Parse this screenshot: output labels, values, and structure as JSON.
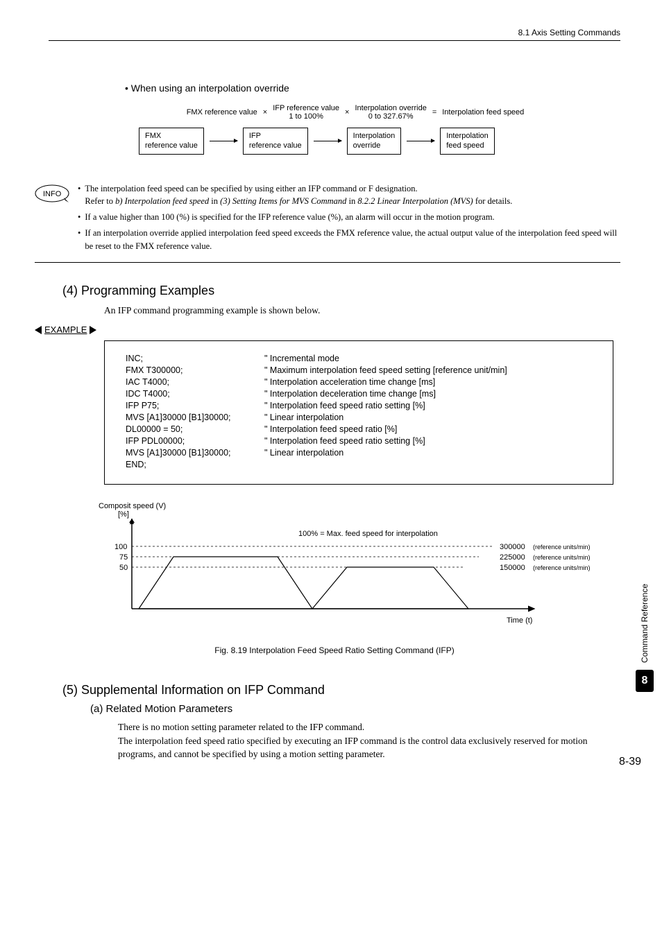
{
  "header": {
    "section": "8.1  Axis Setting Commands"
  },
  "bullet_title": "•  When using an interpolation override",
  "formula": {
    "fmx_label": "FMX reference value",
    "ifp_label": "IFP reference value",
    "ifp_sub": "1 to 100%",
    "ovr_label": "Interpolation override",
    "ovr_sub": "0 to 327.67%",
    "result": "Interpolation feed speed"
  },
  "boxes": {
    "b1": "FMX\nreference value",
    "b2": "IFP\nreference value",
    "b3": "Interpolation\noverride",
    "b4": "Interpolation\nfeed speed"
  },
  "info": {
    "i1": "The interpolation feed speed can be specified by using either an IFP command or F designation.",
    "i1b_pre": "Refer to ",
    "i1b_it1": "b) Interpolation feed speed",
    "i1b_mid1": " in ",
    "i1b_it2": "(3) Setting Items for MVS Command",
    "i1b_mid2": " in ",
    "i1b_it3": "8.2.2 Linear Interpolation (MVS)",
    "i1b_post": " for details.",
    "i2": "If a value higher than 100 (%) is specified for the IFP reference value (%), an alarm will occur in the motion program.",
    "i3": "If an interpolation override applied interpolation feed speed exceeds the FMX reference value, the actual output value of the interpolation feed speed will be reset to the FMX reference value."
  },
  "sec4": {
    "title": "(4) Programming Examples",
    "para": "An IFP command programming example is shown below."
  },
  "example_label": "EXAMPLE",
  "code": [
    {
      "l": "INC;",
      "r": "\" Incremental mode"
    },
    {
      "l": "FMX T300000;",
      "r": "\" Maximum interpolation feed speed setting [reference unit/min]"
    },
    {
      "l": "IAC T4000;",
      "r": "\" Interpolation acceleration time change [ms]"
    },
    {
      "l": "IDC T4000;",
      "r": "\" Interpolation deceleration time change [ms]"
    },
    {
      "l": "IFP P75;",
      "r": "\" Interpolation feed speed ratio setting [%]"
    },
    {
      "l": "MVS [A1]30000 [B1]30000;",
      "r": "\" Linear interpolation"
    },
    {
      "l": "DL00000 = 50;",
      "r": "\" Interpolation feed speed ratio [%]"
    },
    {
      "l": "IFP PDL00000;",
      "r": "\" Interpolation feed speed ratio setting [%]"
    },
    {
      "l": "MVS [A1]30000 [B1]30000;",
      "r": "\" Linear interpolation"
    },
    {
      "l": "END;",
      "r": ""
    }
  ],
  "chart": {
    "ylabel_top": "Composit speed (V)",
    "ylabel_unit": "[%]",
    "annot_100": "100% = Max. feed speed for interpolation",
    "ticks": {
      "t100": "100",
      "t75": "75",
      "t50": "50"
    },
    "labels": {
      "l300": "300000",
      "l225": "225000",
      "l150": "150000",
      "unit": "(reference units/min)"
    },
    "xlabel": "Time (t)",
    "colors": {
      "axis": "#000000",
      "dash": "#000000"
    }
  },
  "fig_caption": "Fig. 8.19  Interpolation Feed Speed Ratio Setting Command (IFP)",
  "sec5": {
    "title": "(5) Supplemental Information on IFP Command",
    "sub_title": "(a)  Related Motion Parameters",
    "para": "There is no motion setting parameter related to the IFP command.\nThe interpolation feed speed ratio specified by executing an IFP command is the control data exclusively reserved for motion programs, and cannot be specified by using a motion setting parameter."
  },
  "side": {
    "text": "Command Reference",
    "num": "8"
  },
  "page": "8-39"
}
